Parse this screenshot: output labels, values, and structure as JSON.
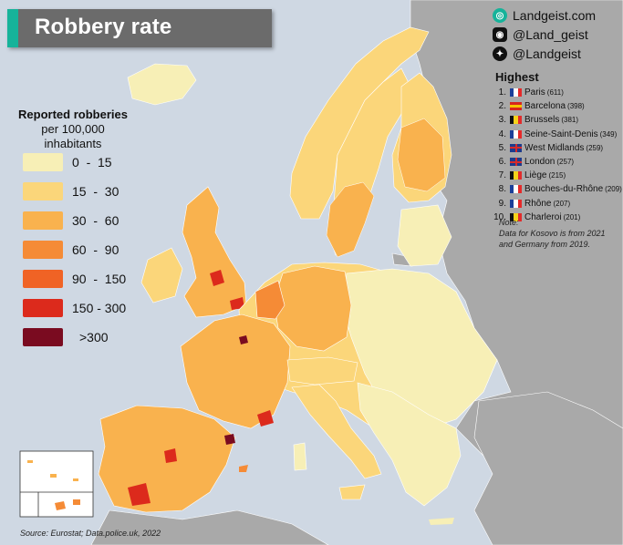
{
  "title": "Robbery rate",
  "brand": {
    "site": "Landgeist.com",
    "instagram": "@Land_geist",
    "twitter": "@Landgeist",
    "icons": [
      "landgeist-logo-icon",
      "instagram-icon",
      "twitter-icon"
    ]
  },
  "legend": {
    "title_line1": "Reported robberies",
    "title_line2": "per 100,000",
    "title_line3": "inhabitants",
    "items": [
      {
        "label": "0  -  15",
        "color": "#f7efb6"
      },
      {
        "label": "15  -  30",
        "color": "#fbd67a"
      },
      {
        "label": "30  -  60",
        "color": "#f9b24e"
      },
      {
        "label": "60  -  90",
        "color": "#f58b36"
      },
      {
        "label": "90  -  150",
        "color": "#f06325"
      },
      {
        "label": "150 - 300",
        "color": "#dc2a1c"
      },
      {
        "label": ">300",
        "color": "#7a0b20"
      }
    ]
  },
  "highest": {
    "title": "Highest",
    "items": [
      {
        "rank": "1.",
        "name": "Paris",
        "value": "(611)",
        "flag": [
          "#1b3f99",
          "#ffffff",
          "#e52a2a"
        ]
      },
      {
        "rank": "2.",
        "name": "Barcelona",
        "value": "(398)",
        "flag": [
          "#d7261e",
          "#f7c300",
          "#d7261e"
        ]
      },
      {
        "rank": "3.",
        "name": "Brussels",
        "value": "(381)",
        "flag": [
          "#111111",
          "#f6d31a",
          "#e12b2b"
        ]
      },
      {
        "rank": "4.",
        "name": "Seine-Saint-Denis",
        "value": "(349)",
        "flag": [
          "#1b3f99",
          "#ffffff",
          "#e52a2a"
        ]
      },
      {
        "rank": "5.",
        "name": "West Midlands",
        "value": "(259)",
        "flag": [
          "#1d3b8c",
          "#e9e9f2",
          "#1d3b8c"
        ]
      },
      {
        "rank": "6.",
        "name": "London",
        "value": "(257)",
        "flag": [
          "#1d3b8c",
          "#e9e9f2",
          "#1d3b8c"
        ]
      },
      {
        "rank": "7.",
        "name": "Liège",
        "value": "(215)",
        "flag": [
          "#111111",
          "#f6d31a",
          "#e12b2b"
        ]
      },
      {
        "rank": "8.",
        "name": "Bouches-du-Rhône",
        "value": "(209)",
        "flag": [
          "#1b3f99",
          "#ffffff",
          "#e52a2a"
        ]
      },
      {
        "rank": "9.",
        "name": "Rhône",
        "value": "(207)",
        "flag": [
          "#1b3f99",
          "#ffffff",
          "#e52a2a"
        ]
      },
      {
        "rank": "10.",
        "name": "Charleroi",
        "value": "(201)",
        "flag": [
          "#111111",
          "#f6d31a",
          "#e12b2b"
        ]
      }
    ]
  },
  "note": "Note:\nData for Kosovo is from 2021\nand Germany from 2019.",
  "source": "Source: Eurostat; Data.police.uk, 2022",
  "colors": {
    "sea": "#cfd8e3",
    "non_eu_land": "#a9a9a9",
    "title_bg": "#6b6b6b",
    "accent": "#16b39a"
  }
}
